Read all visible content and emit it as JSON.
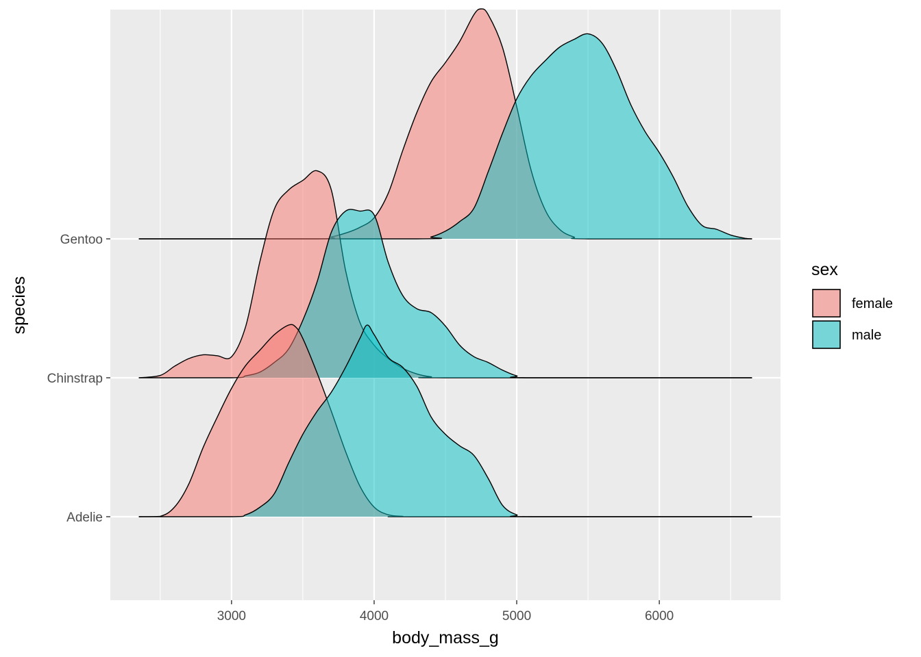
{
  "chart_data": {
    "type": "ridgeline",
    "title": "",
    "xlabel": "body_mass_g",
    "ylabel": "species",
    "xlim": [
      2150,
      6850
    ],
    "x_ticks": [
      3000,
      4000,
      5000,
      6000
    ],
    "x_tick_labels": [
      "3000",
      "4000",
      "5000",
      "6000"
    ],
    "x_grid_minor": [
      2500,
      3500,
      4500,
      5500,
      6500
    ],
    "categories": [
      "Adelie",
      "Chinstrap",
      "Gentoo"
    ],
    "grid": true,
    "legend": {
      "title": "sex",
      "placement": "right",
      "entries": [
        {
          "label": "female",
          "color": "#F8766D"
        },
        {
          "label": "male",
          "color": "#00BFC4"
        }
      ]
    },
    "series": [
      {
        "species": "Adelie",
        "sex": "female",
        "color": "#F8766D",
        "density_relative": [
          [
            2350,
            0
          ],
          [
            2500,
            0.002
          ],
          [
            2600,
            0.05
          ],
          [
            2700,
            0.17
          ],
          [
            2800,
            0.36
          ],
          [
            2900,
            0.52
          ],
          [
            3000,
            0.67
          ],
          [
            3100,
            0.79
          ],
          [
            3200,
            0.87
          ],
          [
            3300,
            0.95
          ],
          [
            3400,
            1.0
          ],
          [
            3450,
            0.99
          ],
          [
            3500,
            0.93
          ],
          [
            3600,
            0.75
          ],
          [
            3700,
            0.55
          ],
          [
            3800,
            0.34
          ],
          [
            3900,
            0.16
          ],
          [
            4000,
            0.05
          ],
          [
            4100,
            0.01
          ],
          [
            4200,
            0.002
          ],
          [
            4300,
            0
          ],
          [
            6650,
            0
          ]
        ]
      },
      {
        "species": "Adelie",
        "sex": "male",
        "color": "#00BFC4",
        "density_relative": [
          [
            2350,
            0
          ],
          [
            3000,
            0
          ],
          [
            3100,
            0.01
          ],
          [
            3200,
            0.05
          ],
          [
            3300,
            0.12
          ],
          [
            3400,
            0.28
          ],
          [
            3500,
            0.43
          ],
          [
            3600,
            0.55
          ],
          [
            3700,
            0.65
          ],
          [
            3800,
            0.78
          ],
          [
            3900,
            0.93
          ],
          [
            3950,
            1.0
          ],
          [
            4000,
            0.95
          ],
          [
            4100,
            0.83
          ],
          [
            4200,
            0.78
          ],
          [
            4300,
            0.68
          ],
          [
            4400,
            0.52
          ],
          [
            4500,
            0.43
          ],
          [
            4600,
            0.37
          ],
          [
            4700,
            0.32
          ],
          [
            4800,
            0.2
          ],
          [
            4900,
            0.06
          ],
          [
            5000,
            0.01
          ],
          [
            5100,
            0
          ],
          [
            6650,
            0
          ]
        ]
      },
      {
        "species": "Chinstrap",
        "sex": "female",
        "color": "#F8766D",
        "density_relative": [
          [
            2350,
            0
          ],
          [
            2500,
            0.012
          ],
          [
            2600,
            0.06
          ],
          [
            2700,
            0.1
          ],
          [
            2800,
            0.12
          ],
          [
            2900,
            0.115
          ],
          [
            3000,
            0.11
          ],
          [
            3100,
            0.27
          ],
          [
            3200,
            0.61
          ],
          [
            3300,
            0.88
          ],
          [
            3400,
            0.98
          ],
          [
            3500,
            1.03
          ],
          [
            3600,
            1.08
          ],
          [
            3700,
            0.98
          ],
          [
            3800,
            0.56
          ],
          [
            3900,
            0.29
          ],
          [
            4000,
            0.17
          ],
          [
            4100,
            0.1
          ],
          [
            4200,
            0.05
          ],
          [
            4300,
            0.02
          ],
          [
            4400,
            0.005
          ],
          [
            4500,
            0
          ],
          [
            6650,
            0
          ]
        ]
      },
      {
        "species": "Chinstrap",
        "sex": "male",
        "color": "#00BFC4",
        "density_relative": [
          [
            2350,
            0
          ],
          [
            3000,
            0
          ],
          [
            3100,
            0.01
          ],
          [
            3200,
            0.03
          ],
          [
            3300,
            0.08
          ],
          [
            3400,
            0.15
          ],
          [
            3500,
            0.3
          ],
          [
            3600,
            0.5
          ],
          [
            3700,
            0.76
          ],
          [
            3800,
            0.87
          ],
          [
            3900,
            0.87
          ],
          [
            4000,
            0.85
          ],
          [
            4100,
            0.6
          ],
          [
            4200,
            0.43
          ],
          [
            4300,
            0.36
          ],
          [
            4400,
            0.34
          ],
          [
            4500,
            0.27
          ],
          [
            4600,
            0.17
          ],
          [
            4700,
            0.11
          ],
          [
            4800,
            0.08
          ],
          [
            4900,
            0.04
          ],
          [
            5000,
            0.01
          ],
          [
            5100,
            0
          ],
          [
            6650,
            0
          ]
        ]
      },
      {
        "species": "Gentoo",
        "sex": "female",
        "color": "#F8766D",
        "density_relative": [
          [
            2350,
            0
          ],
          [
            3600,
            0
          ],
          [
            3700,
            0.01
          ],
          [
            3800,
            0.03
          ],
          [
            3900,
            0.06
          ],
          [
            4000,
            0.11
          ],
          [
            4100,
            0.24
          ],
          [
            4200,
            0.46
          ],
          [
            4300,
            0.66
          ],
          [
            4400,
            0.82
          ],
          [
            4500,
            0.92
          ],
          [
            4600,
            1.03
          ],
          [
            4700,
            1.17
          ],
          [
            4750,
            1.2
          ],
          [
            4800,
            1.17
          ],
          [
            4900,
            1.0
          ],
          [
            5000,
            0.69
          ],
          [
            5100,
            0.36
          ],
          [
            5200,
            0.15
          ],
          [
            5300,
            0.05
          ],
          [
            5400,
            0.01
          ],
          [
            5500,
            0
          ],
          [
            6650,
            0
          ]
        ]
      },
      {
        "species": "Gentoo",
        "sex": "male",
        "color": "#00BFC4",
        "density_relative": [
          [
            2350,
            0
          ],
          [
            4300,
            0
          ],
          [
            4400,
            0.01
          ],
          [
            4500,
            0.04
          ],
          [
            4600,
            0.09
          ],
          [
            4700,
            0.16
          ],
          [
            4800,
            0.35
          ],
          [
            4900,
            0.55
          ],
          [
            5000,
            0.73
          ],
          [
            5100,
            0.85
          ],
          [
            5200,
            0.93
          ],
          [
            5300,
            1.0
          ],
          [
            5400,
            1.04
          ],
          [
            5500,
            1.07
          ],
          [
            5600,
            1.02
          ],
          [
            5700,
            0.88
          ],
          [
            5800,
            0.7
          ],
          [
            5900,
            0.56
          ],
          [
            6000,
            0.45
          ],
          [
            6100,
            0.32
          ],
          [
            6200,
            0.17
          ],
          [
            6300,
            0.07
          ],
          [
            6400,
            0.05
          ],
          [
            6500,
            0.02
          ],
          [
            6600,
            0.003
          ],
          [
            6650,
            0
          ]
        ]
      }
    ]
  }
}
